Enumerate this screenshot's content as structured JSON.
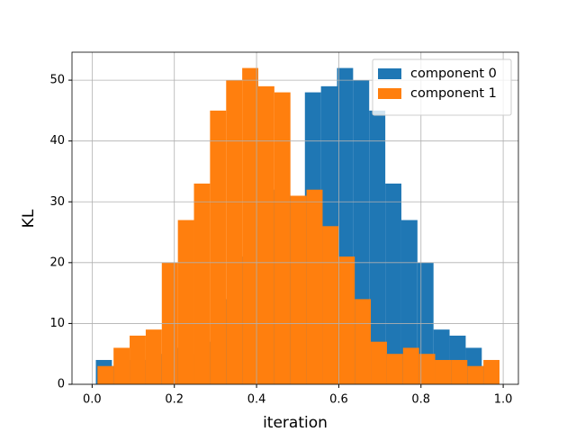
{
  "chart_data": {
    "type": "histogram",
    "xlabel": "iteration",
    "ylabel": "KL",
    "series": [
      {
        "name": "component 0",
        "color": "#1f77b4",
        "bins": [
          0.009,
          0.0481,
          0.0872,
          0.1264,
          0.1655,
          0.2046,
          0.2437,
          0.2828,
          0.322,
          0.3611,
          0.4002,
          0.4393,
          0.4784,
          0.5176,
          0.5567,
          0.5958,
          0.6349,
          0.674,
          0.7132,
          0.7523,
          0.7914,
          0.8305,
          0.8696,
          0.9088,
          0.9479,
          0.987
        ],
        "values": [
          4,
          3,
          4,
          4,
          5,
          6,
          5,
          7,
          14,
          21,
          26,
          32,
          31,
          48,
          49,
          52,
          50,
          45,
          33,
          27,
          20,
          9,
          8,
          6,
          3
        ]
      },
      {
        "name": "component 1",
        "color": "#ff7f0e",
        "bins": [
          0.013,
          0.0521,
          0.0912,
          0.1304,
          0.1695,
          0.2086,
          0.2477,
          0.2868,
          0.326,
          0.3651,
          0.4042,
          0.4433,
          0.4824,
          0.5216,
          0.5607,
          0.5998,
          0.6389,
          0.678,
          0.7172,
          0.7563,
          0.7954,
          0.8345,
          0.8736,
          0.9128,
          0.9519,
          0.991
        ],
        "values": [
          3,
          6,
          8,
          9,
          20,
          27,
          33,
          45,
          50,
          52,
          49,
          48,
          31,
          32,
          26,
          21,
          14,
          7,
          5,
          6,
          5,
          4,
          4,
          3,
          4
        ]
      }
    ],
    "xlim": [
      -0.049,
      1.037
    ],
    "ylim": [
      0,
      54.6
    ],
    "xticks": [
      {
        "value": 0,
        "label": "0.0"
      },
      {
        "value": 0.2,
        "label": "0.2"
      },
      {
        "value": 0.4,
        "label": "0.4"
      },
      {
        "value": 0.6,
        "label": "0.6"
      },
      {
        "value": 0.8,
        "label": "0.8"
      },
      {
        "value": 1,
        "label": "1.0"
      }
    ],
    "yticks": [
      0,
      10,
      20,
      30,
      40,
      50
    ],
    "grid": true,
    "legend": "upper right"
  }
}
